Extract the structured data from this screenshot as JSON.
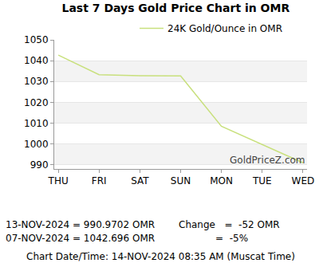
{
  "chart_data": {
    "type": "line",
    "title": "Last 7 Days Gold Price Chart in OMR",
    "categories": [
      "THU",
      "FRI",
      "SAT",
      "SUN",
      "MON",
      "TUE",
      "WED"
    ],
    "series": [
      {
        "name": "24K Gold/Ounce in OMR",
        "color": "#c8e07c",
        "values": [
          1042.696,
          1033.3,
          1032.8,
          1032.7,
          1008.5,
          999.7,
          990.9702
        ]
      }
    ],
    "ylim": [
      988,
      1050
    ],
    "yticks": [
      990,
      1000,
      1010,
      1020,
      1030,
      1040,
      1050
    ],
    "grid": true,
    "legend": "top",
    "annotations": [
      "GoldPriceZ.com",
      "13-NOV-2024 = 990.9702 OMR",
      "07-NOV-2024 = 1042.696 OMR",
      "Change   =  -52 OMR",
      "=  -5%",
      "Chart Date/Time: 14-NOV-2024 08:35 AM (Muscat Time)"
    ]
  }
}
